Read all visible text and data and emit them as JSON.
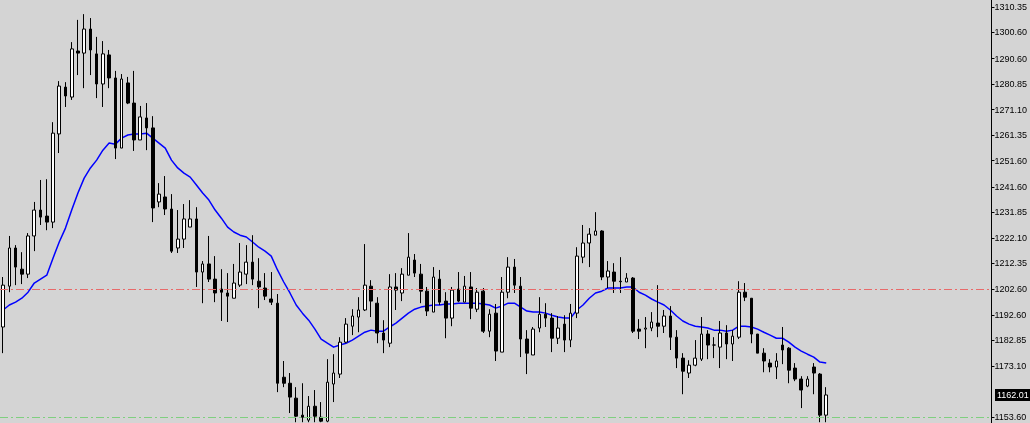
{
  "chart_data": {
    "type": "candlestick",
    "categories": [
      null,
      null,
      null,
      null,
      null,
      null,
      null,
      null,
      null,
      null,
      null,
      null,
      null,
      null,
      null,
      null,
      null,
      null,
      null,
      null,
      null,
      null,
      null,
      null,
      null,
      null,
      null,
      null,
      null,
      null,
      null,
      null,
      null,
      null,
      null,
      null,
      null,
      null,
      null,
      null,
      null,
      null,
      null,
      null,
      null,
      null,
      null,
      null,
      null,
      null,
      null,
      null,
      null,
      null,
      null,
      null,
      null,
      null,
      null,
      null,
      null,
      null,
      null,
      null,
      null,
      null,
      null,
      null,
      null,
      null,
      null,
      null,
      null,
      null,
      null,
      null,
      null,
      null,
      null,
      null,
      null,
      null,
      null,
      null,
      null,
      null,
      null,
      null,
      null,
      null,
      null,
      null,
      null,
      null,
      null,
      null,
      null,
      null,
      null,
      null,
      null,
      null,
      null,
      null,
      null,
      null,
      null,
      null,
      null,
      null,
      null,
      null,
      null,
      null,
      null,
      null,
      null,
      null,
      null,
      null,
      null,
      null,
      null,
      null,
      null,
      null,
      null,
      null,
      null,
      null,
      null,
      null,
      null
    ],
    "color": "#000000",
    "ohlc": [
      [
        1188.0,
        1207.1,
        1178.0,
        1204.0
      ],
      [
        1203.6,
        1222.8,
        1201.3,
        1218.2
      ],
      [
        1218.2,
        1219.3,
        1204.0,
        1210.9
      ],
      [
        1210.1,
        1216.6,
        1204.4,
        1208.2
      ],
      [
        1208.2,
        1223.9,
        1206.7,
        1222.8
      ],
      [
        1222.8,
        1235.8,
        1217.0,
        1232.7
      ],
      [
        1232.7,
        1244.2,
        1227.0,
        1230.0
      ],
      [
        1230.4,
        1244.5,
        1225.0,
        1228.1
      ],
      [
        1228.1,
        1266.3,
        1225.8,
        1262.1
      ],
      [
        1261.8,
        1282.0,
        1254.5,
        1280.1
      ],
      [
        1279.7,
        1281.6,
        1272.1,
        1276.3
      ],
      [
        1275.9,
        1296.9,
        1274.8,
        1294.3
      ],
      [
        1293.5,
        1305.4,
        1284.3,
        1292.7
      ],
      [
        1292.7,
        1307.6,
        1279.3,
        1301.9
      ],
      [
        1301.9,
        1306.1,
        1284.3,
        1293.9
      ],
      [
        1292.4,
        1298.9,
        1275.5,
        1280.9
      ],
      [
        1280.9,
        1297.3,
        1272.1,
        1292.4
      ],
      [
        1292.0,
        1293.9,
        1279.3,
        1283.2
      ],
      [
        1283.2,
        1285.9,
        1252.2,
        1256.4
      ],
      [
        1256.4,
        1284.7,
        1256.4,
        1282.8
      ],
      [
        1281.3,
        1283.6,
        1273.2,
        1273.6
      ],
      [
        1273.6,
        1285.9,
        1255.3,
        1259.5
      ],
      [
        1259.5,
        1272.5,
        1259.5,
        1268.3
      ],
      [
        1267.9,
        1273.6,
        1255.6,
        1264.1
      ],
      [
        1264.1,
        1268.6,
        1228.1,
        1233.5
      ],
      [
        1235.8,
        1243.0,
        1233.8,
        1238.8
      ],
      [
        1237.7,
        1245.7,
        1230.8,
        1233.1
      ],
      [
        1233.1,
        1238.8,
        1216.3,
        1217.0
      ],
      [
        1218.2,
        1232.7,
        1216.3,
        1221.6
      ],
      [
        1221.6,
        1235.0,
        1218.2,
        1229.3
      ],
      [
        1226.2,
        1236.5,
        1226.2,
        1229.3
      ],
      [
        1229.3,
        1233.8,
        1203.3,
        1209.0
      ],
      [
        1209.0,
        1213.2,
        1197.1,
        1212.1
      ],
      [
        1212.1,
        1222.8,
        1205.2,
        1206.3
      ],
      [
        1206.3,
        1215.1,
        1197.5,
        1201.0
      ],
      [
        1202.5,
        1210.1,
        1190.3,
        1201.3
      ],
      [
        1201.0,
        1208.6,
        1189.9,
        1199.8
      ],
      [
        1199.0,
        1212.1,
        1199.0,
        1204.8
      ],
      [
        1204.0,
        1220.1,
        1203.3,
        1209.0
      ],
      [
        1208.2,
        1219.3,
        1204.4,
        1212.8
      ],
      [
        1212.8,
        1223.1,
        1204.0,
        1206.3
      ],
      [
        1205.5,
        1214.3,
        1195.2,
        1203.3
      ],
      [
        1202.9,
        1208.6,
        1198.3,
        1199.8
      ],
      [
        1198.7,
        1209.0,
        1196.4,
        1197.5
      ],
      [
        1197.1,
        1200.6,
        1163.1,
        1166.5
      ],
      [
        1168.8,
        1175.0,
        1165.0,
        1166.5
      ],
      [
        1166.5,
        1170.4,
        1155.1,
        1161.2
      ],
      [
        1160.8,
        1165.0,
        1151.6,
        1153.9
      ],
      [
        1154.3,
        1166.5,
        1151.6,
        1153.5
      ],
      [
        1152.4,
        1161.6,
        1151.6,
        1157.7
      ],
      [
        1157.7,
        1163.9,
        1151.6,
        1153.9
      ],
      [
        1153.5,
        1159.3,
        1151.6,
        1152.0
      ],
      [
        1152.0,
        1175.7,
        1151.6,
        1166.9
      ],
      [
        1166.2,
        1177.6,
        1159.3,
        1170.4
      ],
      [
        1170.0,
        1184.1,
        1168.5,
        1182.2
      ],
      [
        1182.2,
        1191.4,
        1181.8,
        1189.1
      ],
      [
        1188.3,
        1194.8,
        1184.9,
        1192.2
      ],
      [
        1191.8,
        1199.4,
        1186.0,
        1194.5
      ],
      [
        1194.5,
        1219.7,
        1194.1,
        1204.0
      ],
      [
        1203.6,
        1205.9,
        1191.8,
        1197.9
      ],
      [
        1197.1,
        1199.4,
        1181.8,
        1185.7
      ],
      [
        1185.7,
        1190.6,
        1178.0,
        1183.0
      ],
      [
        1181.8,
        1208.2,
        1180.3,
        1203.3
      ],
      [
        1203.3,
        1208.6,
        1194.5,
        1202.1
      ],
      [
        1201.0,
        1210.5,
        1197.9,
        1208.2
      ],
      [
        1207.8,
        1223.9,
        1207.8,
        1214.7
      ],
      [
        1213.6,
        1215.9,
        1207.1,
        1208.6
      ],
      [
        1208.2,
        1212.1,
        1197.1,
        1201.7
      ],
      [
        1201.7,
        1203.3,
        1192.2,
        1194.1
      ],
      [
        1193.7,
        1210.9,
        1193.7,
        1207.1
      ],
      [
        1206.3,
        1209.8,
        1196.4,
        1197.5
      ],
      [
        1197.9,
        1201.3,
        1183.7,
        1191.4
      ],
      [
        1191.4,
        1203.3,
        1188.3,
        1202.1
      ],
      [
        1202.5,
        1209.0,
        1197.5,
        1197.9
      ],
      [
        1197.5,
        1207.5,
        1197.5,
        1203.6
      ],
      [
        1203.3,
        1209.0,
        1191.0,
        1195.2
      ],
      [
        1194.8,
        1202.9,
        1193.7,
        1201.3
      ],
      [
        1201.7,
        1202.9,
        1185.7,
        1186.4
      ],
      [
        1186.4,
        1194.8,
        1184.1,
        1192.9
      ],
      [
        1193.3,
        1196.8,
        1175.0,
        1178.8
      ],
      [
        1178.4,
        1207.1,
        1178.4,
        1201.3
      ],
      [
        1201.3,
        1214.7,
        1199.0,
        1210.9
      ],
      [
        1210.9,
        1214.0,
        1201.0,
        1204.0
      ],
      [
        1203.6,
        1207.1,
        1176.5,
        1183.4
      ],
      [
        1183.4,
        1186.8,
        1170.0,
        1178.0
      ],
      [
        1177.3,
        1188.0,
        1177.3,
        1187.2
      ],
      [
        1187.6,
        1199.4,
        1186.0,
        1192.9
      ],
      [
        1192.9,
        1197.1,
        1188.0,
        1191.4
      ],
      [
        1191.4,
        1193.3,
        1178.4,
        1183.7
      ],
      [
        1183.7,
        1192.2,
        1181.5,
        1187.6
      ],
      [
        1189.1,
        1192.5,
        1178.4,
        1183.0
      ],
      [
        1183.0,
        1196.8,
        1180.3,
        1193.3
      ],
      [
        1193.3,
        1218.5,
        1191.4,
        1215.1
      ],
      [
        1214.7,
        1227.0,
        1212.4,
        1220.1
      ],
      [
        1220.1,
        1225.8,
        1210.9,
        1223.5
      ],
      [
        1223.1,
        1231.9,
        1223.1,
        1224.7
      ],
      [
        1224.7,
        1225.0,
        1205.9,
        1207.1
      ],
      [
        1207.1,
        1213.2,
        1202.9,
        1209.4
      ],
      [
        1209.0,
        1212.4,
        1201.0,
        1205.5
      ],
      [
        1205.5,
        1214.7,
        1201.0,
        1205.3
      ],
      [
        1205.2,
        1208.6,
        1205.2,
        1206.7
      ],
      [
        1206.7,
        1207.1,
        1185.7,
        1186.4
      ],
      [
        1187.2,
        1191.0,
        1183.4,
        1186.4
      ],
      [
        1187.2,
        1191.8,
        1179.9,
        1187.6
      ],
      [
        1187.6,
        1193.7,
        1186.4,
        1189.9
      ],
      [
        1189.5,
        1204.0,
        1184.1,
        1188.3
      ],
      [
        1188.3,
        1194.5,
        1185.7,
        1192.2
      ],
      [
        1192.2,
        1196.0,
        1179.2,
        1184.1
      ],
      [
        1184.1,
        1186.8,
        1172.3,
        1176.1
      ],
      [
        1176.1,
        1178.0,
        1162.3,
        1171.1
      ],
      [
        1170.4,
        1175.3,
        1168.5,
        1173.4
      ],
      [
        1173.4,
        1183.0,
        1173.0,
        1176.1
      ],
      [
        1175.7,
        1191.8,
        1175.0,
        1185.3
      ],
      [
        1185.3,
        1186.8,
        1175.7,
        1181.1
      ],
      [
        1181.1,
        1184.1,
        1176.1,
        1181.1
      ],
      [
        1180.3,
        1190.3,
        1172.3,
        1185.7
      ],
      [
        1185.7,
        1188.7,
        1175.7,
        1181.5
      ],
      [
        1181.5,
        1186.8,
        1175.0,
        1184.5
      ],
      [
        1184.1,
        1205.5,
        1183.4,
        1201.3
      ],
      [
        1201.3,
        1204.8,
        1197.9,
        1199.4
      ],
      [
        1199.0,
        1199.0,
        1181.8,
        1185.3
      ],
      [
        1185.3,
        1185.3,
        1178.0,
        1178.0
      ],
      [
        1178.0,
        1179.9,
        1170.7,
        1175.0
      ],
      [
        1174.2,
        1175.7,
        1170.7,
        1172.7
      ],
      [
        1172.7,
        1178.0,
        1168.1,
        1175.0
      ],
      [
        1181.1,
        1188.0,
        1173.8,
        1179.2
      ],
      [
        1179.9,
        1180.3,
        1166.5,
        1171.5
      ],
      [
        1172.3,
        1174.2,
        1167.3,
        1168.1
      ],
      [
        1168.1,
        1169.2,
        1157.0,
        1163.9
      ],
      [
        1165.4,
        1169.2,
        1165.0,
        1168.1
      ],
      [
        1172.7,
        1174.2,
        1162.3,
        1170.4
      ],
      [
        1170.0,
        1170.4,
        1151.6,
        1154.3
      ],
      [
        1154.3,
        1165.0,
        1151.6,
        1162.01
      ]
    ],
    "series": [
      {
        "type": "line",
        "color": "#0000ff",
        "values": [
          1194.5,
          1196.4,
          1197.5,
          1199.0,
          1201.3,
          1204.8,
          1206.3,
          1207.8,
          1214.3,
          1220.5,
          1225.8,
          1232.7,
          1239.2,
          1244.9,
          1248.8,
          1251.8,
          1255.6,
          1258.3,
          1257.9,
          1260.2,
          1261.4,
          1261.8,
          1261.8,
          1262.1,
          1260.2,
          1258.3,
          1256.4,
          1251.8,
          1248.8,
          1246.8,
          1245.3,
          1242.3,
          1239.2,
          1236.5,
          1232.7,
          1229.6,
          1226.2,
          1224.3,
          1223.1,
          1222.4,
          1220.5,
          1218.5,
          1217.0,
          1215.1,
          1209.8,
          1205.2,
          1201.0,
          1196.4,
          1193.3,
          1190.6,
          1187.2,
          1183.4,
          1181.8,
          1180.3,
          1181.1,
          1181.8,
          1183.0,
          1184.5,
          1186.0,
          1186.8,
          1186.4,
          1186.4,
          1188.0,
          1189.5,
          1191.4,
          1193.3,
          1194.8,
          1195.6,
          1196.0,
          1196.4,
          1196.4,
          1196.8,
          1196.8,
          1197.1,
          1197.1,
          1197.1,
          1197.1,
          1196.8,
          1196.4,
          1195.2,
          1196.0,
          1197.1,
          1197.1,
          1195.6,
          1194.1,
          1193.7,
          1193.7,
          1193.3,
          1192.5,
          1191.8,
          1191.4,
          1191.4,
          1194.5,
          1196.4,
          1199.0,
          1201.0,
          1201.7,
          1202.9,
          1202.9,
          1202.9,
          1203.3,
          1203.3,
          1201.3,
          1200.2,
          1198.7,
          1197.5,
          1196.4,
          1194.5,
          1192.2,
          1190.3,
          1189.1,
          1188.3,
          1188.0,
          1187.6,
          1186.8,
          1186.8,
          1186.4,
          1186.8,
          1188.3,
          1188.3,
          1188.0,
          1187.2,
          1186.0,
          1184.9,
          1183.7,
          1183.7,
          1182.2,
          1180.3,
          1178.8,
          1177.6,
          1176.5,
          1174.6,
          1174.2
        ]
      }
    ],
    "ylim": [
      1151.3,
      1313.0
    ],
    "yticks": [
      1310.35,
      {
        "value": 1300.6,
        "label": "1300.60"
      },
      {
        "value": 1290.6,
        "label": "1290.60"
      },
      1280.85,
      {
        "value": 1271.1,
        "label": "1271.10"
      },
      1261.35,
      {
        "value": 1251.6,
        "label": "1251.60"
      },
      {
        "value": 1241.6,
        "label": "1241.60"
      },
      1231.85,
      {
        "value": 1222.1,
        "label": "1222.10"
      },
      1212.35,
      {
        "value": 1202.6,
        "label": "1202.60"
      },
      {
        "value": 1192.6,
        "label": "1192.60"
      },
      1182.85,
      {
        "value": 1173.1,
        "label": "1173.10"
      },
      {
        "value": 1153.6,
        "label": "1153.60"
      }
    ],
    "ref_lines": [
      {
        "axis": "y",
        "value": 1202.6,
        "color": "#e86a6a",
        "line_style": "dashed"
      },
      {
        "axis": "y",
        "value": 1153.6,
        "color": "#7fcf7f",
        "line_style": "dashed"
      }
    ],
    "annotations": [
      "1162.01"
    ],
    "tick_labels": "y"
  }
}
